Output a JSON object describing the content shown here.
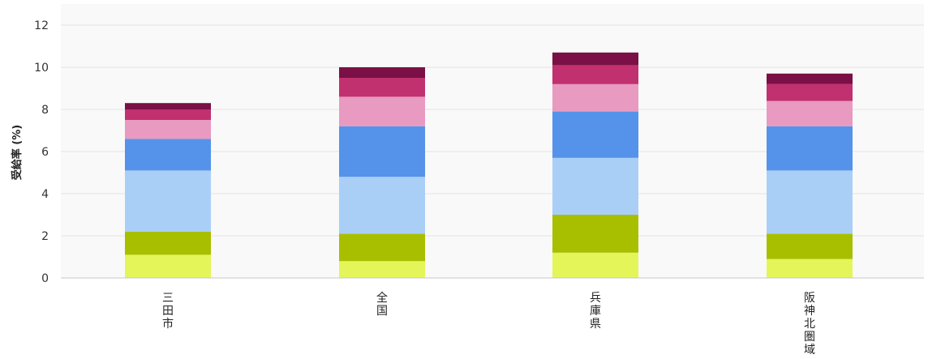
{
  "chart_data": {
    "type": "bar",
    "stacked": true,
    "title": "",
    "xlabel": "",
    "ylabel": "受給率 (%)",
    "ylim": [
      0,
      12
    ],
    "yticks": [
      0,
      2,
      4,
      6,
      8,
      10,
      12
    ],
    "grid": true,
    "legend": "none",
    "categories": [
      "三田市",
      "全国",
      "兵庫県",
      "阪神北圏域"
    ],
    "series": [
      {
        "color": "#e4f55a",
        "values": [
          1.1,
          0.8,
          1.2,
          0.9
        ]
      },
      {
        "color": "#a8bf00",
        "values": [
          1.1,
          1.3,
          1.8,
          1.2
        ]
      },
      {
        "color": "#a9cff7",
        "values": [
          2.9,
          2.7,
          2.7,
          3.0
        ]
      },
      {
        "color": "#5593ea",
        "values": [
          1.5,
          2.4,
          2.2,
          2.1
        ]
      },
      {
        "color": "#e89ac1",
        "values": [
          0.9,
          1.4,
          1.3,
          1.2
        ]
      },
      {
        "color": "#c1306f",
        "values": [
          0.5,
          0.9,
          0.9,
          0.8
        ]
      },
      {
        "color": "#7a1045",
        "values": [
          0.3,
          0.5,
          0.6,
          0.5
        ]
      }
    ]
  }
}
